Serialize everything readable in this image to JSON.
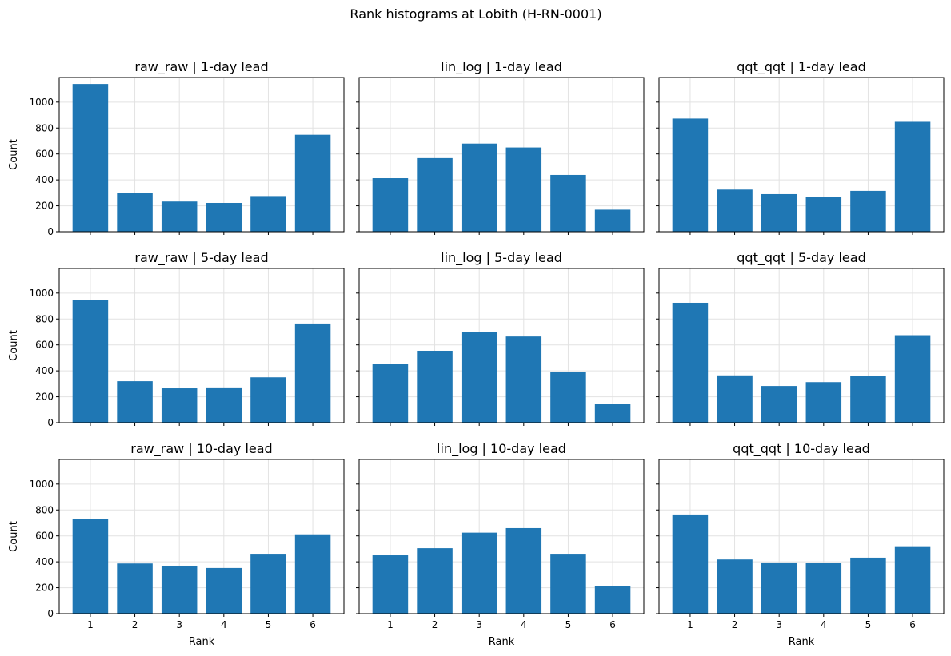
{
  "figure": {
    "suptitle": "Rank histograms at Lobith (H-RN-0001)"
  },
  "colors": {
    "bar": "#1f77b4",
    "grid": "#e2e2e2",
    "axis": "#000000",
    "background": "#ffffff"
  },
  "chart_data": [
    {
      "type": "bar",
      "title": "raw_raw | 1-day lead",
      "categories": [
        "1",
        "2",
        "3",
        "4",
        "5",
        "6"
      ],
      "values": [
        1140,
        300,
        233,
        222,
        275,
        748
      ],
      "xlabel": "",
      "ylabel": "Count",
      "ylim": [
        0,
        1190
      ],
      "yticks": [
        0,
        200,
        400,
        600,
        800,
        1000
      ],
      "grid": true
    },
    {
      "type": "bar",
      "title": "lin_log | 1-day lead",
      "categories": [
        "1",
        "2",
        "3",
        "4",
        "5",
        "6"
      ],
      "values": [
        413,
        568,
        680,
        650,
        438,
        170
      ],
      "xlabel": "",
      "ylabel": "",
      "ylim": [
        0,
        1190
      ],
      "yticks": [
        0,
        200,
        400,
        600,
        800,
        1000
      ],
      "grid": true
    },
    {
      "type": "bar",
      "title": "qqt_qqt | 1-day lead",
      "categories": [
        "1",
        "2",
        "3",
        "4",
        "5",
        "6"
      ],
      "values": [
        873,
        325,
        290,
        270,
        315,
        848
      ],
      "xlabel": "",
      "ylabel": "",
      "ylim": [
        0,
        1190
      ],
      "yticks": [
        0,
        200,
        400,
        600,
        800,
        1000
      ],
      "grid": true
    },
    {
      "type": "bar",
      "title": "raw_raw | 5-day lead",
      "categories": [
        "1",
        "2",
        "3",
        "4",
        "5",
        "6"
      ],
      "values": [
        945,
        320,
        265,
        272,
        350,
        765
      ],
      "xlabel": "",
      "ylabel": "Count",
      "ylim": [
        0,
        1190
      ],
      "yticks": [
        0,
        200,
        400,
        600,
        800,
        1000
      ],
      "grid": true
    },
    {
      "type": "bar",
      "title": "lin_log | 5-day lead",
      "categories": [
        "1",
        "2",
        "3",
        "4",
        "5",
        "6"
      ],
      "values": [
        455,
        555,
        700,
        665,
        390,
        145
      ],
      "xlabel": "",
      "ylabel": "",
      "ylim": [
        0,
        1190
      ],
      "yticks": [
        0,
        200,
        400,
        600,
        800,
        1000
      ],
      "grid": true
    },
    {
      "type": "bar",
      "title": "qqt_qqt | 5-day lead",
      "categories": [
        "1",
        "2",
        "3",
        "4",
        "5",
        "6"
      ],
      "values": [
        925,
        365,
        283,
        313,
        358,
        675
      ],
      "xlabel": "",
      "ylabel": "",
      "ylim": [
        0,
        1190
      ],
      "yticks": [
        0,
        200,
        400,
        600,
        800,
        1000
      ],
      "grid": true
    },
    {
      "type": "bar",
      "title": "raw_raw | 10-day lead",
      "categories": [
        "1",
        "2",
        "3",
        "4",
        "5",
        "6"
      ],
      "values": [
        733,
        387,
        370,
        352,
        462,
        612
      ],
      "xlabel": "Rank",
      "ylabel": "Count",
      "ylim": [
        0,
        1190
      ],
      "yticks": [
        0,
        200,
        400,
        600,
        800,
        1000
      ],
      "grid": true
    },
    {
      "type": "bar",
      "title": "lin_log | 10-day lead",
      "categories": [
        "1",
        "2",
        "3",
        "4",
        "5",
        "6"
      ],
      "values": [
        450,
        505,
        625,
        660,
        462,
        213
      ],
      "xlabel": "Rank",
      "ylabel": "",
      "ylim": [
        0,
        1190
      ],
      "yticks": [
        0,
        200,
        400,
        600,
        800,
        1000
      ],
      "grid": true
    },
    {
      "type": "bar",
      "title": "qqt_qqt | 10-day lead",
      "categories": [
        "1",
        "2",
        "3",
        "4",
        "5",
        "6"
      ],
      "values": [
        765,
        418,
        395,
        390,
        432,
        520
      ],
      "xlabel": "Rank",
      "ylabel": "",
      "ylim": [
        0,
        1190
      ],
      "yticks": [
        0,
        200,
        400,
        600,
        800,
        1000
      ],
      "grid": true
    }
  ]
}
